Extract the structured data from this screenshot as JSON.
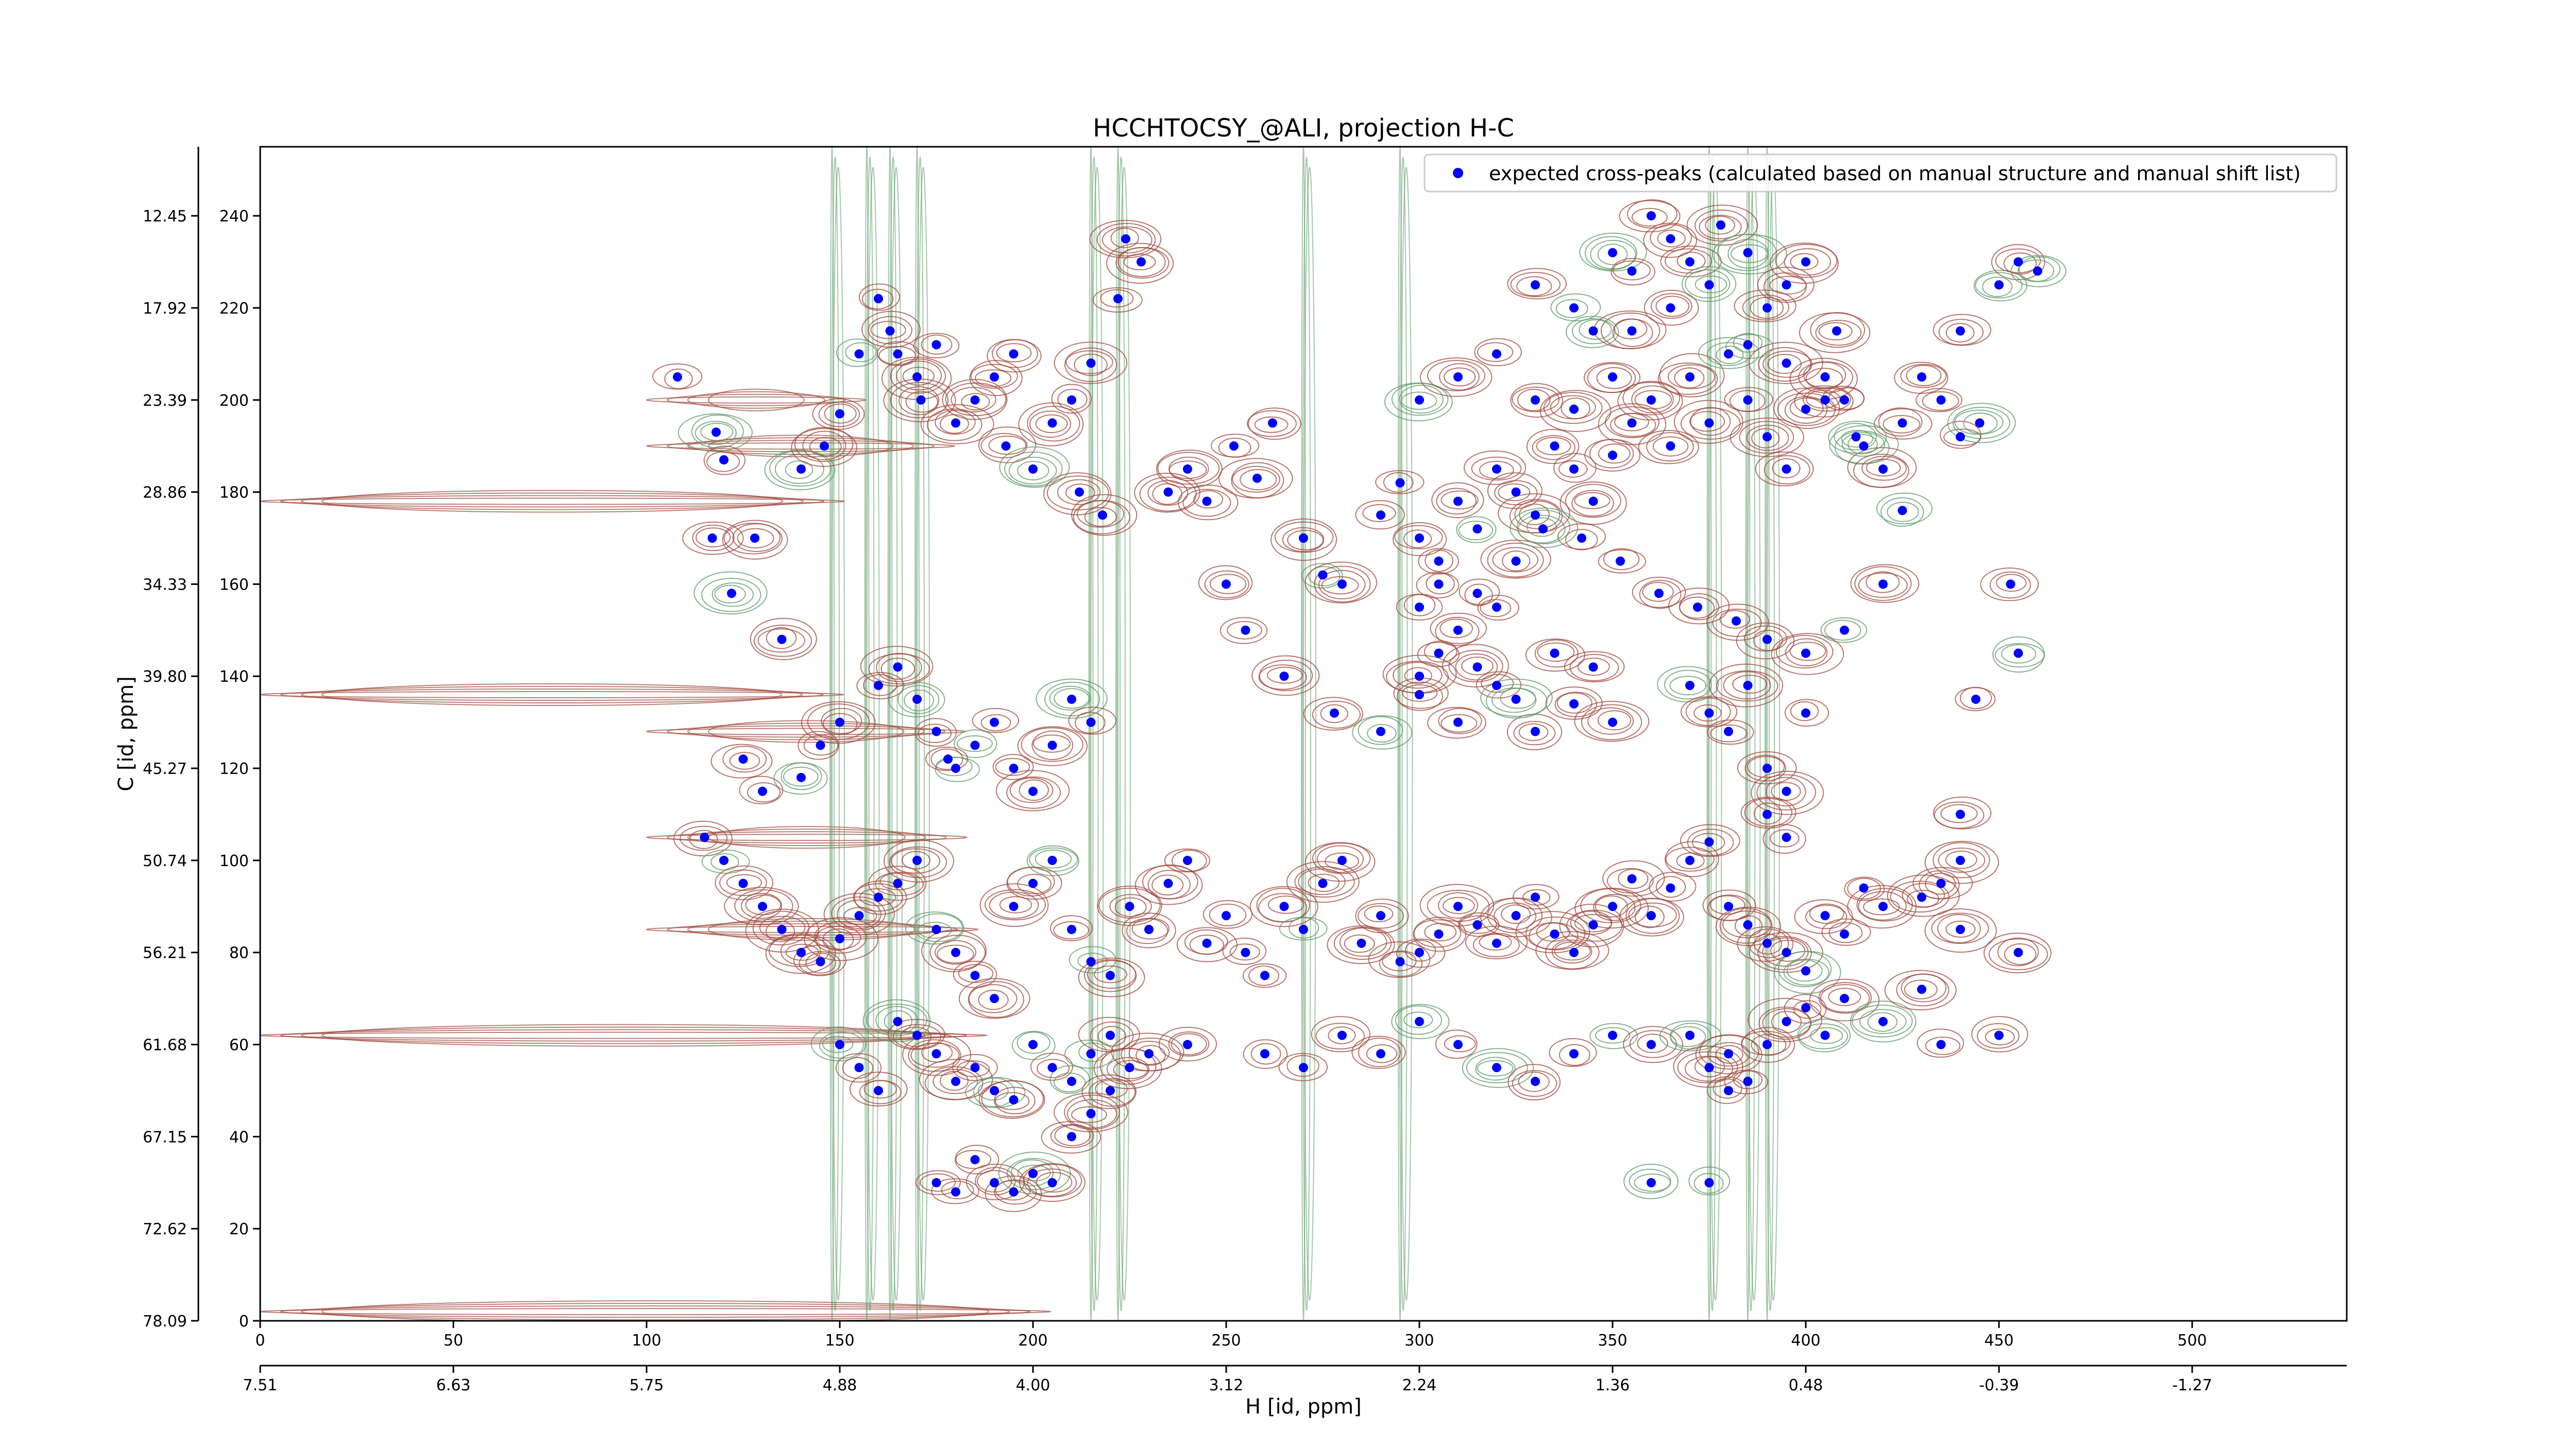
{
  "chart_data": {
    "type": "scatter",
    "title": "HCCHTOCSY_@ALI, projection H-C",
    "xlabel": "H [id, ppm]",
    "ylabel": "C [id, ppm]",
    "xlim": [
      0,
      540
    ],
    "ylim": [
      0,
      255
    ],
    "x_index_ticks": [
      "0",
      "50",
      "100",
      "150",
      "200",
      "250",
      "300",
      "350",
      "400",
      "450",
      "500"
    ],
    "x_ppm_ticks": [
      "7.51",
      "6.63",
      "5.75",
      "4.88",
      "4.00",
      "3.12",
      "2.24",
      "1.36",
      "0.48",
      "-0.39",
      "-1.27"
    ],
    "y_index_ticks": [
      "0",
      "20",
      "40",
      "60",
      "80",
      "100",
      "120",
      "140",
      "160",
      "180",
      "200",
      "220",
      "240"
    ],
    "y_ppm_ticks": [
      "78.09",
      "72.62",
      "67.15",
      "61.68",
      "56.21",
      "50.74",
      "45.27",
      "39.80",
      "34.33",
      "28.86",
      "23.39",
      "17.92",
      "12.45"
    ],
    "legend": {
      "position": "top-right",
      "label": "expected cross-peaks (calculated based on manual structure and manual shift list)"
    },
    "colors": {
      "positive_contours": "#a0483c",
      "negative_contours": "#5c9a68",
      "markers": "#0000ff"
    },
    "series": [
      {
        "name": "expected cross-peaks (calculated based on manual structure and manual shift list)",
        "points": [
          [
            108,
            205
          ],
          [
            118,
            193
          ],
          [
            120,
            187
          ],
          [
            117,
            170
          ],
          [
            122,
            158
          ],
          [
            128,
            170
          ],
          [
            135,
            148
          ],
          [
            140,
            185
          ],
          [
            146,
            190
          ],
          [
            150,
            197
          ],
          [
            155,
            210
          ],
          [
            160,
            222
          ],
          [
            163,
            215
          ],
          [
            165,
            210
          ],
          [
            170,
            205
          ],
          [
            171,
            200
          ],
          [
            175,
            212
          ],
          [
            180,
            195
          ],
          [
            185,
            200
          ],
          [
            190,
            205
          ],
          [
            195,
            210
          ],
          [
            193,
            190
          ],
          [
            200,
            185
          ],
          [
            205,
            195
          ],
          [
            210,
            200
          ],
          [
            215,
            208
          ],
          [
            212,
            180
          ],
          [
            218,
            175
          ],
          [
            222,
            222
          ],
          [
            224,
            235
          ],
          [
            228,
            230
          ],
          [
            235,
            180
          ],
          [
            240,
            185
          ],
          [
            245,
            178
          ],
          [
            252,
            190
          ],
          [
            258,
            183
          ],
          [
            262,
            195
          ],
          [
            270,
            170
          ],
          [
            275,
            162
          ],
          [
            280,
            160
          ],
          [
            250,
            160
          ],
          [
            255,
            150
          ],
          [
            265,
            140
          ],
          [
            278,
            132
          ],
          [
            290,
            128
          ],
          [
            300,
            136
          ],
          [
            310,
            130
          ],
          [
            320,
            138
          ],
          [
            330,
            128
          ],
          [
            340,
            134
          ],
          [
            350,
            130
          ],
          [
            345,
            142
          ],
          [
            335,
            145
          ],
          [
            325,
            135
          ],
          [
            315,
            142
          ],
          [
            370,
            138
          ],
          [
            375,
            132
          ],
          [
            380,
            128
          ],
          [
            385,
            138
          ],
          [
            390,
            120
          ],
          [
            395,
            115
          ],
          [
            400,
            132
          ],
          [
            390,
            110
          ],
          [
            395,
            105
          ],
          [
            290,
            175
          ],
          [
            295,
            182
          ],
          [
            300,
            170
          ],
          [
            305,
            165
          ],
          [
            310,
            178
          ],
          [
            315,
            172
          ],
          [
            320,
            185
          ],
          [
            325,
            180
          ],
          [
            330,
            175
          ],
          [
            335,
            190
          ],
          [
            340,
            185
          ],
          [
            345,
            178
          ],
          [
            350,
            188
          ],
          [
            355,
            195
          ],
          [
            360,
            200
          ],
          [
            365,
            190
          ],
          [
            370,
            205
          ],
          [
            375,
            195
          ],
          [
            380,
            210
          ],
          [
            385,
            200
          ],
          [
            390,
            192
          ],
          [
            395,
            185
          ],
          [
            400,
            198
          ],
          [
            405,
            205
          ],
          [
            410,
            200
          ],
          [
            415,
            190
          ],
          [
            420,
            185
          ],
          [
            425,
            195
          ],
          [
            430,
            205
          ],
          [
            435,
            200
          ],
          [
            440,
            192
          ],
          [
            445,
            195
          ],
          [
            440,
            215
          ],
          [
            450,
            225
          ],
          [
            455,
            230
          ],
          [
            460,
            228
          ],
          [
            330,
            225
          ],
          [
            340,
            220
          ],
          [
            345,
            215
          ],
          [
            350,
            232
          ],
          [
            355,
            228
          ],
          [
            360,
            240
          ],
          [
            365,
            235
          ],
          [
            370,
            230
          ],
          [
            378,
            238
          ],
          [
            385,
            232
          ],
          [
            390,
            220
          ],
          [
            395,
            225
          ],
          [
            400,
            230
          ],
          [
            408,
            215
          ],
          [
            300,
            155
          ],
          [
            305,
            160
          ],
          [
            310,
            150
          ],
          [
            315,
            158
          ],
          [
            320,
            155
          ],
          [
            325,
            165
          ],
          [
            300,
            140
          ],
          [
            305,
            145
          ],
          [
            180,
            120
          ],
          [
            185,
            125
          ],
          [
            190,
            130
          ],
          [
            195,
            120
          ],
          [
            200,
            115
          ],
          [
            205,
            125
          ],
          [
            210,
            135
          ],
          [
            215,
            130
          ],
          [
            160,
            138
          ],
          [
            165,
            142
          ],
          [
            170,
            135
          ],
          [
            175,
            128
          ],
          [
            178,
            122
          ],
          [
            150,
            130
          ],
          [
            145,
            125
          ],
          [
            140,
            118
          ],
          [
            130,
            115
          ],
          [
            125,
            122
          ],
          [
            115,
            105
          ],
          [
            120,
            100
          ],
          [
            125,
            95
          ],
          [
            130,
            90
          ],
          [
            135,
            85
          ],
          [
            140,
            80
          ],
          [
            145,
            78
          ],
          [
            150,
            83
          ],
          [
            155,
            88
          ],
          [
            160,
            92
          ],
          [
            165,
            95
          ],
          [
            170,
            100
          ],
          [
            175,
            85
          ],
          [
            180,
            80
          ],
          [
            185,
            75
          ],
          [
            190,
            70
          ],
          [
            195,
            90
          ],
          [
            200,
            95
          ],
          [
            205,
            100
          ],
          [
            210,
            85
          ],
          [
            215,
            78
          ],
          [
            220,
            75
          ],
          [
            225,
            90
          ],
          [
            230,
            85
          ],
          [
            235,
            95
          ],
          [
            240,
            100
          ],
          [
            245,
            82
          ],
          [
            250,
            88
          ],
          [
            255,
            80
          ],
          [
            260,
            75
          ],
          [
            265,
            90
          ],
          [
            270,
            85
          ],
          [
            275,
            95
          ],
          [
            280,
            100
          ],
          [
            285,
            82
          ],
          [
            290,
            88
          ],
          [
            295,
            78
          ],
          [
            300,
            80
          ],
          [
            305,
            84
          ],
          [
            310,
            90
          ],
          [
            315,
            86
          ],
          [
            320,
            82
          ],
          [
            325,
            88
          ],
          [
            330,
            92
          ],
          [
            335,
            84
          ],
          [
            340,
            80
          ],
          [
            345,
            86
          ],
          [
            350,
            90
          ],
          [
            355,
            96
          ],
          [
            360,
            88
          ],
          [
            365,
            94
          ],
          [
            370,
            100
          ],
          [
            375,
            104
          ],
          [
            380,
            90
          ],
          [
            385,
            86
          ],
          [
            390,
            82
          ],
          [
            395,
            80
          ],
          [
            400,
            76
          ],
          [
            405,
            88
          ],
          [
            410,
            84
          ],
          [
            415,
            94
          ],
          [
            420,
            90
          ],
          [
            430,
            92
          ],
          [
            435,
            95
          ],
          [
            440,
            85
          ],
          [
            150,
            60
          ],
          [
            155,
            55
          ],
          [
            160,
            50
          ],
          [
            165,
            65
          ],
          [
            170,
            62
          ],
          [
            175,
            58
          ],
          [
            180,
            52
          ],
          [
            185,
            55
          ],
          [
            190,
            50
          ],
          [
            195,
            48
          ],
          [
            200,
            60
          ],
          [
            205,
            55
          ],
          [
            210,
            52
          ],
          [
            215,
            58
          ],
          [
            220,
            62
          ],
          [
            225,
            55
          ],
          [
            230,
            58
          ],
          [
            240,
            60
          ],
          [
            260,
            58
          ],
          [
            270,
            55
          ],
          [
            280,
            62
          ],
          [
            290,
            58
          ],
          [
            300,
            65
          ],
          [
            310,
            60
          ],
          [
            320,
            55
          ],
          [
            330,
            52
          ],
          [
            340,
            58
          ],
          [
            350,
            62
          ],
          [
            360,
            60
          ],
          [
            370,
            62
          ],
          [
            375,
            55
          ],
          [
            380,
            58
          ],
          [
            385,
            52
          ],
          [
            390,
            60
          ],
          [
            395,
            65
          ],
          [
            400,
            68
          ],
          [
            405,
            62
          ],
          [
            410,
            70
          ],
          [
            420,
            65
          ],
          [
            430,
            72
          ],
          [
            435,
            60
          ],
          [
            450,
            62
          ],
          [
            175,
            30
          ],
          [
            180,
            28
          ],
          [
            185,
            35
          ],
          [
            190,
            30
          ],
          [
            195,
            28
          ],
          [
            200,
            32
          ],
          [
            205,
            30
          ],
          [
            210,
            40
          ],
          [
            215,
            45
          ],
          [
            220,
            50
          ],
          [
            360,
            30
          ],
          [
            375,
            30
          ],
          [
            380,
            50
          ],
          [
            455,
            145
          ],
          [
            453,
            160
          ],
          [
            455,
            80
          ],
          [
            440,
            100
          ],
          [
            440,
            110
          ],
          [
            444,
            135
          ],
          [
            300,
            200
          ],
          [
            310,
            205
          ],
          [
            320,
            210
          ],
          [
            330,
            200
          ],
          [
            340,
            198
          ],
          [
            350,
            205
          ],
          [
            355,
            215
          ],
          [
            365,
            220
          ],
          [
            375,
            225
          ],
          [
            385,
            212
          ],
          [
            395,
            208
          ],
          [
            405,
            200
          ],
          [
            413,
            192
          ],
          [
            425,
            176
          ],
          [
            420,
            160
          ],
          [
            410,
            150
          ],
          [
            400,
            145
          ],
          [
            390,
            148
          ],
          [
            382,
            152
          ],
          [
            372,
            155
          ],
          [
            362,
            158
          ],
          [
            352,
            165
          ],
          [
            342,
            170
          ],
          [
            332,
            172
          ]
        ]
      }
    ]
  }
}
